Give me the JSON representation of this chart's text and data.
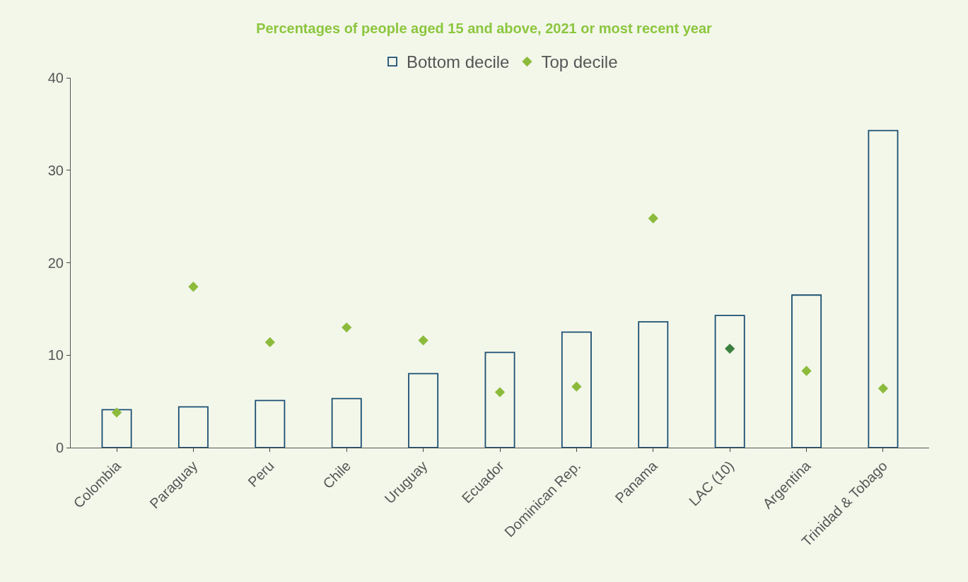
{
  "chart_data": {
    "type": "bar",
    "title": "Percentages of people aged 15 and above, 2021 or most recent year",
    "categories": [
      "Colombia",
      "Paraguay",
      "Peru",
      "Chile",
      "Uruguay",
      "Ecuador",
      "Dominican Rep.",
      "Panama",
      "LAC (10)",
      "Argentina",
      "Trinidad & Tobago"
    ],
    "series": [
      {
        "name": "Bottom decile",
        "color": "#1b4f72",
        "values": [
          4.1,
          4.4,
          5.1,
          5.3,
          8.0,
          10.3,
          12.5,
          13.6,
          14.3,
          16.5,
          34.3
        ]
      },
      {
        "name": "Top decile",
        "type": "scatter",
        "color": "#8cbb3c",
        "colors": [
          "#8cbb3c",
          "#8cbb3c",
          "#8cbb3c",
          "#8cbb3c",
          "#8cbb3c",
          "#8cbb3c",
          "#8cbb3c",
          "#8cbb3c",
          "#3b7f3e",
          "#8cbb3c",
          "#8cbb3c"
        ],
        "marker": "diamond",
        "values": [
          3.8,
          17.4,
          11.4,
          13.0,
          11.6,
          6.0,
          6.6,
          24.8,
          10.7,
          8.3,
          6.4
        ]
      }
    ],
    "ylim": [
      0,
      40
    ],
    "yticks": [
      0,
      10,
      20,
      30,
      40
    ],
    "grid": false,
    "legend": "top"
  }
}
